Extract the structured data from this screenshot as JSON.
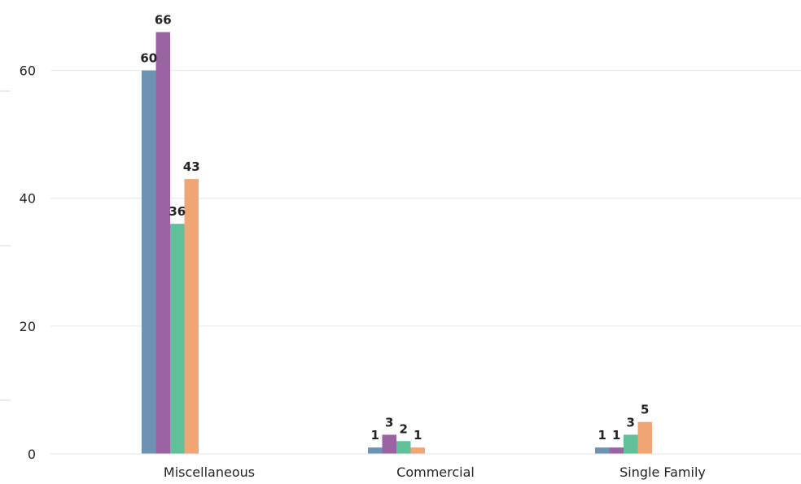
{
  "chart_data": {
    "type": "bar",
    "title": "",
    "xlabel": "",
    "ylabel": "",
    "categories": [
      "Miscellaneous",
      "Commercial",
      "Single Family"
    ],
    "series": [
      {
        "values": [
          60,
          1,
          1
        ],
        "color": "#6e93b2"
      },
      {
        "values": [
          66,
          3,
          1
        ],
        "color": "#9a64a2"
      },
      {
        "values": [
          36,
          2,
          3
        ],
        "color": "#5fc09a"
      },
      {
        "values": [
          43,
          1,
          5
        ],
        "color": "#efa574"
      }
    ],
    "ylim": [
      0,
      70
    ],
    "yticks": [
      0,
      20,
      40,
      60
    ],
    "grid": true,
    "legend": "none",
    "data_labels": true
  }
}
